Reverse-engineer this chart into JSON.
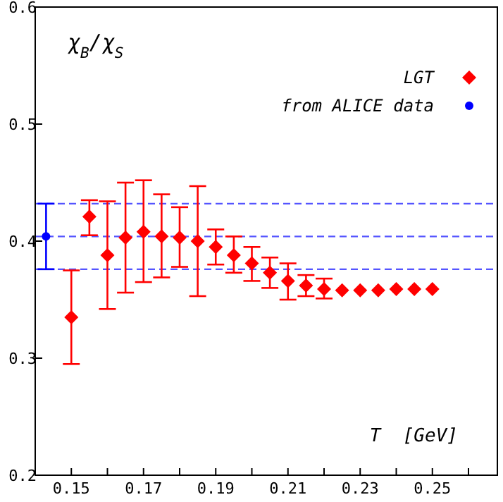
{
  "chart_data": {
    "type": "scatter",
    "ylabel": "χ$_{B}$/χ$_{S}$",
    "xlabel": "T  [GeV]",
    "xlim": [
      0.14,
      0.268
    ],
    "ylim": [
      0.2,
      0.6
    ],
    "xticks": [
      0.15,
      {
        "value": 0.16,
        "label": null
      },
      0.17,
      {
        "value": 0.18,
        "label": null
      },
      0.19,
      {
        "value": 0.2,
        "label": null
      },
      0.21,
      {
        "value": 0.22,
        "label": null
      },
      0.23,
      {
        "value": 0.24,
        "label": null
      },
      0.25,
      {
        "value": 0.26,
        "label": null
      }
    ],
    "yticks": [
      0.2,
      0.3,
      0.4,
      0.5,
      0.6
    ],
    "legend": "top right",
    "ref_lines": [
      {
        "axis": "y",
        "value": 0.432,
        "color": "#5555ff",
        "line_style": "dashed"
      },
      {
        "axis": "y",
        "value": 0.404,
        "color": "#5555ff",
        "line_style": "dashed"
      },
      {
        "axis": "y",
        "value": 0.376,
        "color": "#5555ff",
        "line_style": "dashed"
      }
    ],
    "series": [
      {
        "name": "LGT",
        "color": "#ff0000",
        "marker": "diamond",
        "x": [
          0.15,
          0.155,
          0.16,
          0.165,
          0.17,
          0.175,
          0.18,
          0.185,
          0.19,
          0.195,
          0.2,
          0.205,
          0.21,
          0.215,
          0.22,
          0.225,
          0.23,
          0.235,
          0.24,
          0.245,
          0.25
        ],
        "values": [
          0.335,
          0.421,
          0.388,
          0.403,
          0.408,
          0.404,
          0.403,
          0.4,
          0.395,
          0.388,
          0.381,
          0.373,
          0.366,
          0.362,
          0.359,
          0.358,
          0.358,
          0.358,
          0.359,
          0.359,
          0.359
        ],
        "errors": [
          [
            0.295,
            0.375
          ],
          [
            0.405,
            0.435
          ],
          [
            0.342,
            0.434
          ],
          [
            0.356,
            0.45
          ],
          [
            0.365,
            0.452
          ],
          [
            0.369,
            0.44
          ],
          [
            0.378,
            0.429
          ],
          [
            0.353,
            0.447
          ],
          [
            0.38,
            0.41
          ],
          [
            0.373,
            0.404
          ],
          [
            0.366,
            0.395
          ],
          [
            0.36,
            0.386
          ],
          [
            0.35,
            0.381
          ],
          [
            0.353,
            0.371
          ],
          [
            0.351,
            0.368
          ],
          null,
          null,
          null,
          null,
          null,
          null
        ]
      },
      {
        "name": "from ALICE data",
        "color": "#0000ff",
        "marker": "circle",
        "x": [
          0.143
        ],
        "values": [
          0.404
        ],
        "errors": [
          [
            0.376,
            0.432
          ]
        ]
      }
    ]
  }
}
